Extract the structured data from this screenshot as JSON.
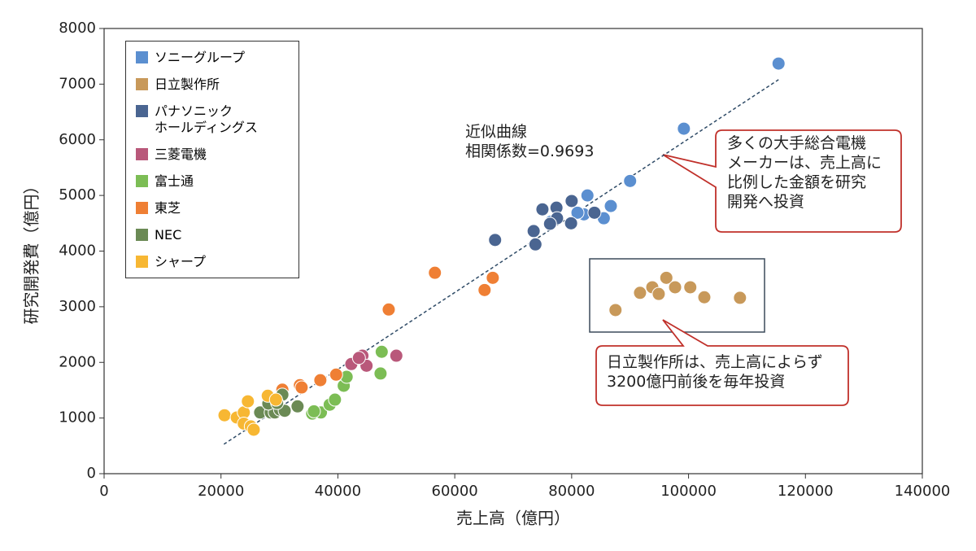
{
  "chart_data": {
    "type": "scatter",
    "xlabel": "売上高（億円）",
    "ylabel": "研究開発費（億円）",
    "xlim": [
      0,
      140000
    ],
    "ylim": [
      0,
      8000
    ],
    "xticks": [
      0,
      20000,
      40000,
      60000,
      80000,
      100000,
      120000,
      140000
    ],
    "yticks": [
      0,
      1000,
      2000,
      3000,
      4000,
      5000,
      6000,
      7000,
      8000
    ],
    "series": [
      {
        "name": "ソニーグループ",
        "color": "#5b8fd0",
        "x": [
          115400,
          99200,
          90000,
          86700,
          85500,
          82700,
          82100,
          81000,
          76500
        ],
        "values": [
          7370,
          6200,
          5260,
          4810,
          4590,
          5000,
          4660,
          4690,
          4530
        ]
      },
      {
        "name": "日立製作所",
        "color": "#c8995a",
        "x": [
          87500,
          91700,
          93800,
          94900,
          96200,
          97700,
          100300,
          102700,
          108800
        ],
        "values": [
          2940,
          3250,
          3350,
          3230,
          3520,
          3350,
          3350,
          3170,
          3160
        ]
      },
      {
        "name": "パナソニック\nホールディングス",
        "color": "#4a6591",
        "x": [
          66900,
          73800,
          73500,
          75000,
          77400,
          77500,
          80000,
          79900,
          83900,
          76300
        ],
        "values": [
          4200,
          4120,
          4360,
          4750,
          4780,
          4590,
          4900,
          4500,
          4690,
          4490
        ]
      },
      {
        "name": "三菱電機",
        "color": "#b9587a",
        "x": [
          42300,
          44200,
          44900,
          50000,
          43600
        ],
        "values": [
          1970,
          2120,
          1940,
          2120,
          2080
        ]
      },
      {
        "name": "富士通",
        "color": "#7cbd55",
        "x": [
          35600,
          37100,
          38600,
          39500,
          41000,
          41500,
          47300,
          47500,
          35900
        ],
        "values": [
          1080,
          1100,
          1240,
          1330,
          1580,
          1740,
          1800,
          2190,
          1120
        ]
      },
      {
        "name": "東芝",
        "color": "#ef7f34",
        "x": [
          30500,
          33500,
          37000,
          39700,
          48700,
          56600,
          65100,
          66500,
          33800
        ],
        "values": [
          1510,
          1590,
          1680,
          1780,
          2950,
          3610,
          3300,
          3520,
          1550
        ]
      },
      {
        "name": "NEC",
        "color": "#6b8a55",
        "x": [
          26700,
          28500,
          29200,
          30100,
          30900,
          30500,
          33100,
          28100,
          29600
        ],
        "values": [
          1100,
          1100,
          1100,
          1150,
          1130,
          1420,
          1210,
          1260,
          1270
        ]
      },
      {
        "name": "シャープ",
        "color": "#f7b733",
        "x": [
          20600,
          22700,
          23900,
          24600,
          23900,
          25100,
          25600,
          28000,
          29400
        ],
        "values": [
          1050,
          1010,
          1100,
          1300,
          900,
          850,
          790,
          1400,
          1330
        ]
      }
    ],
    "trendline": {
      "x": [
        20500,
        115400
      ],
      "values": [
        530,
        7080
      ],
      "color": "#2e4a66"
    },
    "annotations": [
      "近似曲線\n相関係数=0.9693",
      "多くの大手総合電機\nメーカーは、売上高に\n比例した金額を研究\n開発へ投資",
      "日立製作所は、売上高によらず\n3200億円前後を毎年投資"
    ]
  }
}
